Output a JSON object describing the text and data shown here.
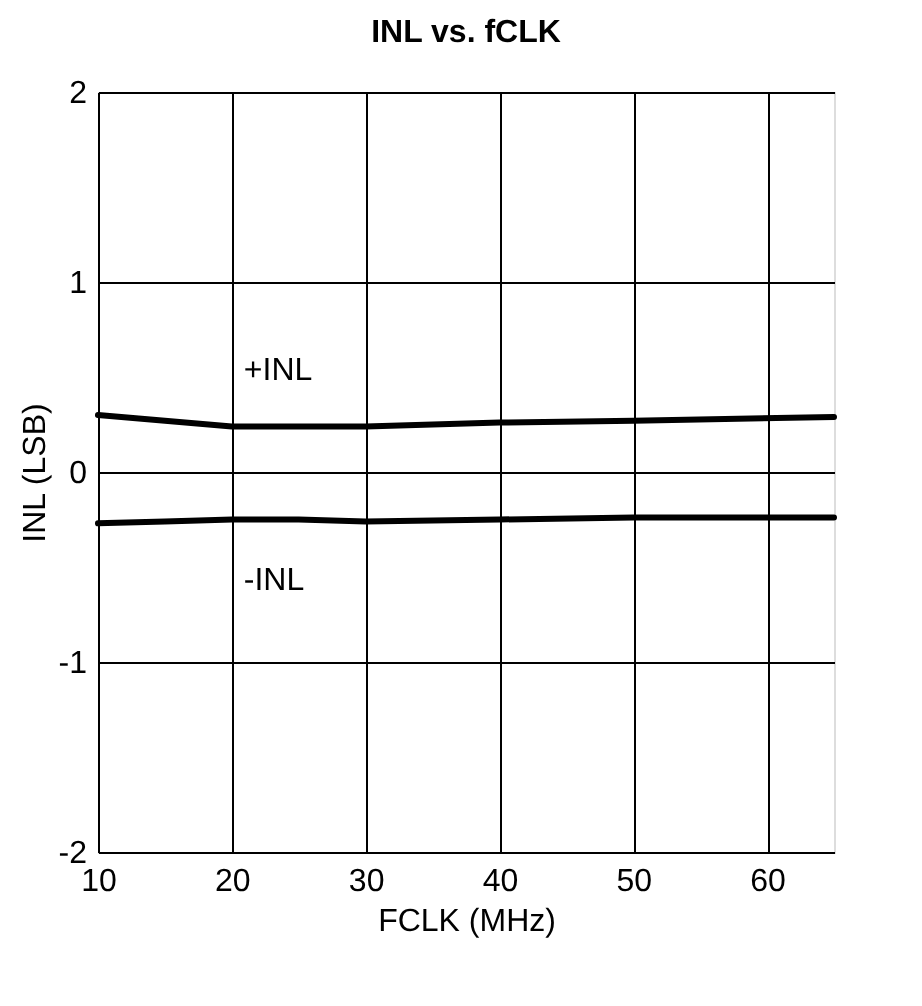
{
  "chart_data": {
    "type": "line",
    "title": "INL vs. fCLK",
    "xlabel": "FCLK (MHz)",
    "ylabel": "INL (LSB)",
    "x": [
      10,
      15,
      20,
      25,
      30,
      40,
      50,
      65
    ],
    "series": [
      {
        "name": "+INL",
        "color": "#000000",
        "values": [
          0.3,
          0.27,
          0.24,
          0.24,
          0.24,
          0.26,
          0.27,
          0.29
        ]
      },
      {
        "name": "-INL",
        "color": "#000000",
        "values": [
          -0.27,
          -0.26,
          -0.25,
          -0.25,
          -0.26,
          -0.25,
          -0.24,
          -0.24
        ]
      }
    ],
    "xlim": [
      10,
      65
    ],
    "xticks": [
      10,
      20,
      30,
      40,
      50,
      60
    ],
    "ylim": [
      -2,
      2
    ],
    "yticks": [
      -2,
      -1,
      0,
      1,
      2
    ],
    "grid": true,
    "legend": false,
    "marker": "none",
    "line_style": "solid"
  }
}
